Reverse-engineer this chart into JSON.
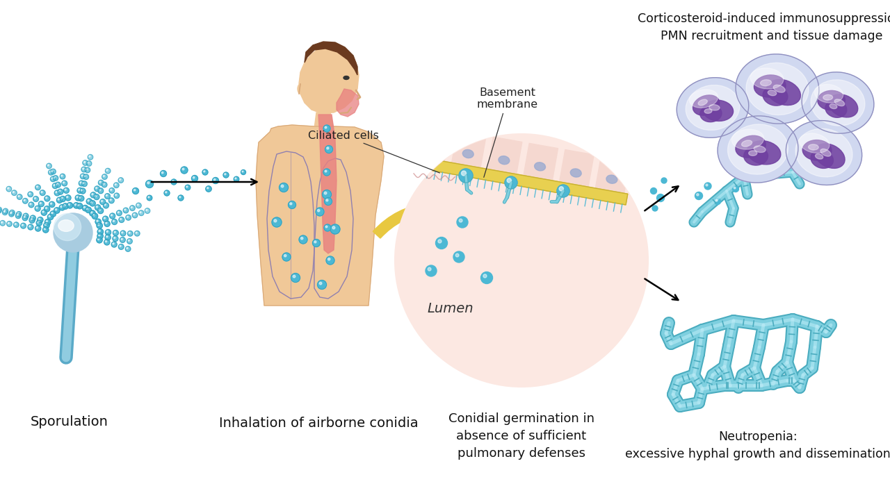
{
  "background_color": "#ffffff",
  "text_color": "#222222",
  "labels": {
    "sporulation": "Sporulation",
    "inhalation": "Inhalation of airborne conidia",
    "conidial": "Conidial germination in\nabsence of sufficient\npulmonary defenses",
    "cortico": "Corticosteroid-induced immunosuppression:\nPMN recruitment and tissue damage",
    "neutropenia": "Neutropenia:\nexcessive hyphal growth and dissemination",
    "basement": "Basement\nmembrane",
    "ciliated": "Ciliated cells",
    "lumen": "Lumen"
  },
  "conidium_color": "#4cb8d4",
  "conidium_outline": "#2a9ab8",
  "conidium_highlight": "#aaeeff",
  "hypha_color": "#7ecfdf",
  "hypha_dark": "#4aacbf",
  "hypha_light": "#b8eaf5",
  "cell_fill": "#f5d8d0",
  "cell_border": "#e09080",
  "basement_color": "#e8d050",
  "basement_dark": "#c8b030",
  "lung_color": "#b8a0cc",
  "lung_border": "#9080b0",
  "skin_color": "#f0c898",
  "skin_dark": "#d8a878",
  "pink_airway": "#e88080",
  "circle_fill": "#fce8e2",
  "circle_border": "#c0a0a0",
  "neutrophil_outer": "#c0c4e0",
  "neutrophil_mid": "#d0d8f0",
  "neutrophil_inner": "#7040a0",
  "neutrophil_light": "#e8e0f8",
  "arrow_yellow": "#e8c840",
  "arrow_yellow_dark": "#c8a820",
  "vesicle_color": "#a8cce0",
  "vesicle_light": "#d8eef8",
  "stalk_color": "#5aaac8",
  "stalk_light": "#90cce0"
}
